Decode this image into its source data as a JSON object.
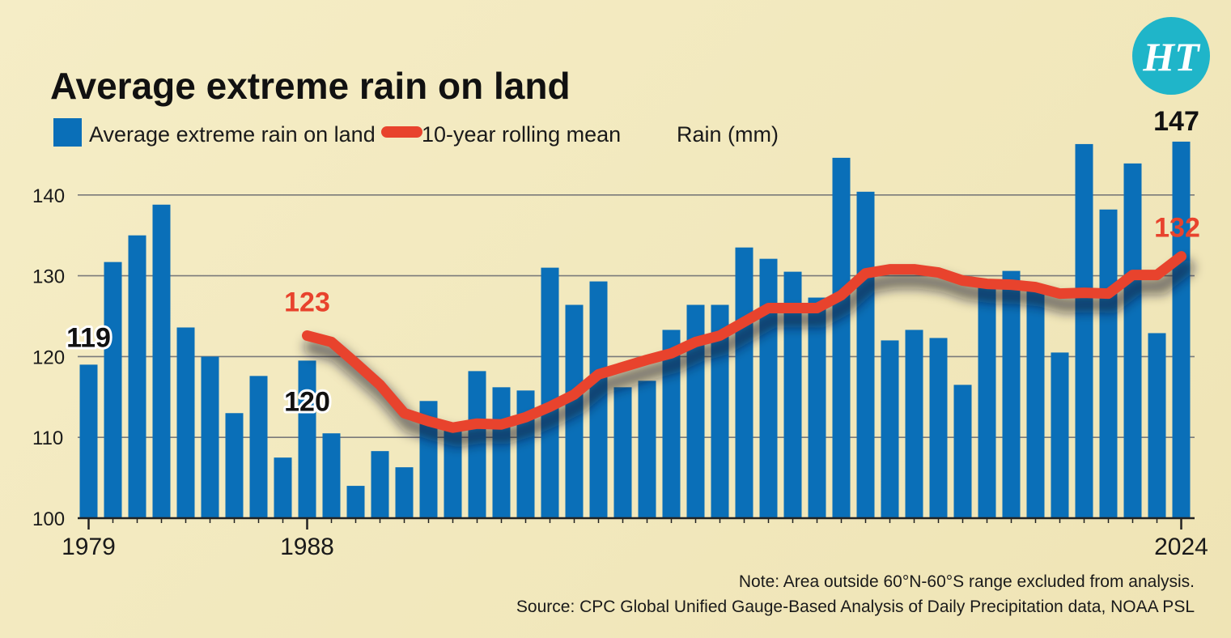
{
  "logo": {
    "text": "HT",
    "color": "#1fb5c9"
  },
  "colors": {
    "bar": "#0a6fb8",
    "line": "#e8432d",
    "grid": "#7a7a7a",
    "background": "#f3ebc4"
  },
  "chart_data": {
    "type": "bar",
    "title": "Average extreme rain on land",
    "ylabel": "Rain (mm)",
    "ylim": [
      100,
      150
    ],
    "yticks": [
      100,
      110,
      120,
      130,
      140
    ],
    "xtick_labels": [
      "1979",
      "1988",
      "2024"
    ],
    "grid": "horizontal",
    "legend_position": "top",
    "categories": [
      1979,
      1980,
      1981,
      1982,
      1983,
      1984,
      1985,
      1986,
      1987,
      1988,
      1989,
      1990,
      1991,
      1992,
      1993,
      1994,
      1995,
      1996,
      1997,
      1998,
      1999,
      2000,
      2001,
      2002,
      2003,
      2004,
      2005,
      2006,
      2007,
      2008,
      2009,
      2010,
      2011,
      2012,
      2013,
      2014,
      2015,
      2016,
      2017,
      2018,
      2019,
      2020,
      2021,
      2022,
      2023,
      2024
    ],
    "series": [
      {
        "name": "Average extreme rain on land",
        "type": "bar",
        "values": [
          119,
          131.7,
          135,
          138.8,
          123.6,
          120,
          113,
          117.6,
          107.5,
          119.5,
          110.5,
          104,
          108.3,
          106.3,
          114.5,
          111.3,
          118.2,
          116.2,
          115.8,
          131,
          126.4,
          129.3,
          116.2,
          117,
          123.3,
          126.4,
          126.4,
          133.5,
          132.1,
          130.5,
          127.3,
          144.6,
          140.4,
          122,
          123.3,
          122.3,
          116.5,
          128.5,
          130.6,
          128.4,
          120.5,
          146.3,
          138.2,
          143.9,
          122.9,
          146.6
        ]
      },
      {
        "name": "10-year rolling mean",
        "type": "line",
        "x": [
          1988,
          1989,
          1990,
          1991,
          1992,
          1993,
          1994,
          1995,
          1996,
          1997,
          1998,
          1999,
          2000,
          2001,
          2002,
          2003,
          2004,
          2005,
          2006,
          2007,
          2008,
          2009,
          2010,
          2011,
          2012,
          2013,
          2014,
          2015,
          2016,
          2017,
          2018,
          2019,
          2020,
          2021,
          2022,
          2023,
          2024
        ],
        "values": [
          122.6,
          121.8,
          119.2,
          116.5,
          113,
          112,
          111.2,
          111.7,
          111.6,
          112.5,
          113.8,
          115.3,
          117.8,
          118.7,
          119.6,
          120.4,
          121.8,
          122.6,
          124.3,
          126,
          126,
          126,
          127.6,
          130.3,
          130.8,
          130.8,
          130.4,
          129.4,
          129,
          128.9,
          128.6,
          127.8,
          127.9,
          127.8,
          130.1,
          130.1,
          132.4
        ]
      }
    ],
    "annotations": [
      {
        "label": "119",
        "target": "bar",
        "year": 1979,
        "color": "#111111"
      },
      {
        "label": "120",
        "target": "bar",
        "year": 1988,
        "color": "#111111"
      },
      {
        "label": "147",
        "target": "bar",
        "year": 2024,
        "color": "#111111"
      },
      {
        "label": "123",
        "target": "line",
        "year": 1988,
        "color": "#e8432d"
      },
      {
        "label": "132",
        "target": "line",
        "year": 2024,
        "color": "#e8432d"
      }
    ],
    "legend": {
      "bar_label": "Average extreme rain on land",
      "line_label": "10-year rolling mean",
      "unit_label": "Rain (mm)"
    },
    "notes": [
      "Note: Area outside 60°N-60°S range excluded from analysis.",
      "Source:  CPC Global Unified Gauge-Based Analysis of Daily Precipitation data, NOAA PSL"
    ]
  }
}
